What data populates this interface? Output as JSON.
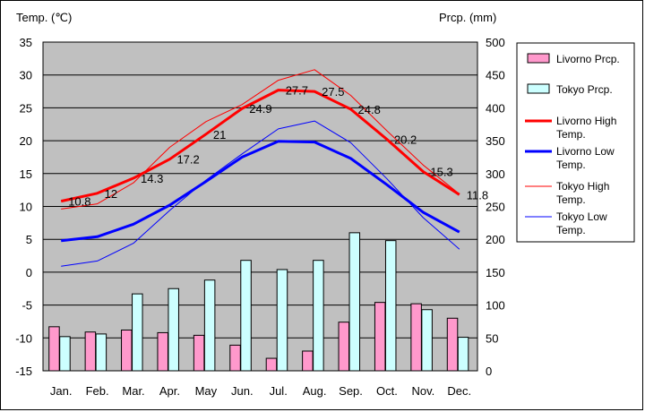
{
  "chart_data": {
    "type": "bar+line",
    "categories": [
      "Jan.",
      "Feb.",
      "Mar.",
      "Apr.",
      "May",
      "Jun.",
      "Jul.",
      "Aug.",
      "Sep.",
      "Oct.",
      "Nov.",
      "Dec."
    ],
    "left_axis": {
      "title": "Temp. (℃)",
      "min": -15,
      "max": 35,
      "step": 5
    },
    "right_axis": {
      "title": "Prcp. (mm)",
      "min": 0,
      "max": 500,
      "step": 50
    },
    "grid": true,
    "legend_position": "right",
    "bar_series": [
      {
        "name": "Livorno Prcp.",
        "color": "#ff99cc",
        "values": [
          67,
          59,
          62,
          58,
          54,
          39,
          19,
          30,
          74,
          104,
          102,
          80
        ]
      },
      {
        "name": "Tokyo Prcp.",
        "color": "#ccffff",
        "values": [
          52,
          56,
          117,
          125,
          138,
          168,
          154,
          168,
          210,
          198,
          93,
          51
        ]
      }
    ],
    "line_series": [
      {
        "name": "Livorno High Temp.",
        "color": "#ff0000",
        "width": 3,
        "values": [
          10.8,
          12,
          14.3,
          17.2,
          21,
          24.9,
          27.7,
          27.5,
          24.8,
          20.2,
          15.3,
          11.8
        ],
        "labels": [
          "10.8",
          "12",
          "14.3",
          "17.2",
          "21",
          "24.9",
          "27.7",
          "27.5",
          "24.8",
          "20.2",
          "15.3",
          "11.8"
        ]
      },
      {
        "name": "Livorno Low Temp.",
        "color": "#0000ff",
        "width": 3,
        "values": [
          4.8,
          5.4,
          7.3,
          10.2,
          13.8,
          17.5,
          19.9,
          19.8,
          17.3,
          13.3,
          9.1,
          6.1
        ]
      },
      {
        "name": "Tokyo High Temp.",
        "color": "#ff0000",
        "width": 1,
        "values": [
          9.6,
          10.4,
          13.6,
          19.0,
          22.9,
          25.5,
          29.2,
          30.8,
          26.9,
          21.5,
          16.3,
          11.9
        ]
      },
      {
        "name": "Tokyo Low Temp.",
        "color": "#0000ff",
        "width": 1,
        "values": [
          0.9,
          1.7,
          4.4,
          9.4,
          14.0,
          18.0,
          21.8,
          23.0,
          19.7,
          14.2,
          8.3,
          3.5
        ]
      }
    ],
    "legend": [
      {
        "label": "Livorno Prcp.",
        "kind": "bar",
        "color": "#ff99cc"
      },
      {
        "label": "Tokyo Prcp.",
        "kind": "bar",
        "color": "#ccffff"
      },
      {
        "label": "Livorno High Temp.",
        "kind": "line",
        "color": "#ff0000",
        "width": 3
      },
      {
        "label": "Livorno Low Temp.",
        "kind": "line",
        "color": "#0000ff",
        "width": 3
      },
      {
        "label": "Tokyo High Temp.",
        "kind": "line",
        "color": "#ff0000",
        "width": 1
      },
      {
        "label": "Tokyo Low Temp.",
        "kind": "line",
        "color": "#0000ff",
        "width": 1
      }
    ]
  }
}
